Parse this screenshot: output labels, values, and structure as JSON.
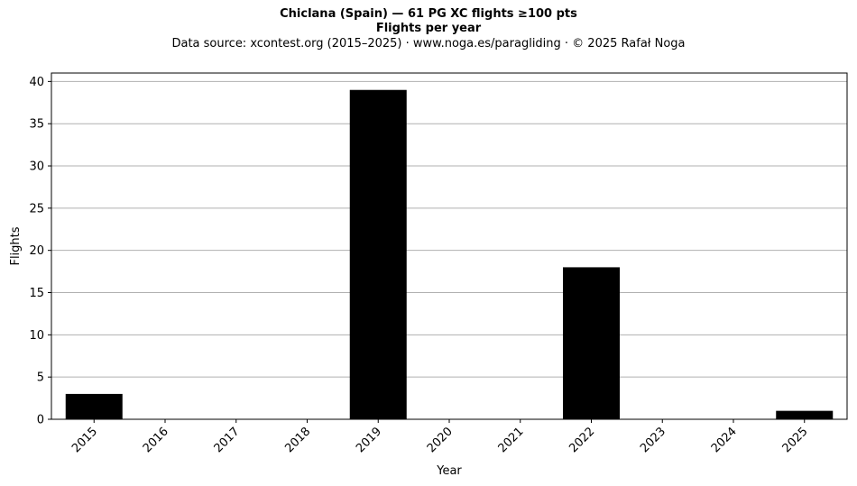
{
  "chart_data": {
    "type": "bar",
    "title": "Chiclana (Spain)  —  61 PG XC flights ≥100 pts",
    "subtitle": "Flights per year",
    "source_note": "Data source: xcontest.org (2015–2025)  ·  www.noga.es/paragliding  ·  © 2025 Rafał Noga",
    "xlabel": "Year",
    "ylabel": "Flights",
    "categories": [
      "2015",
      "2016",
      "2017",
      "2018",
      "2019",
      "2020",
      "2021",
      "2022",
      "2023",
      "2024",
      "2025"
    ],
    "values": [
      3,
      0,
      0,
      0,
      39,
      0,
      0,
      18,
      0,
      0,
      1
    ],
    "yticks": [
      0,
      5,
      10,
      15,
      20,
      25,
      30,
      35,
      40
    ],
    "ylim": [
      0,
      41
    ],
    "grid": "y",
    "bar_color": "#000000",
    "grid_color": "#b0b0b0"
  }
}
